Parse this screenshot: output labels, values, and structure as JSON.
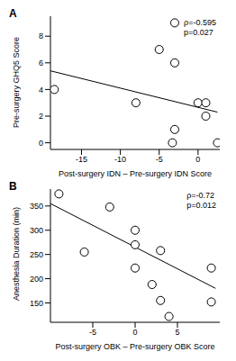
{
  "chart_data": [
    {
      "type": "scatter",
      "title": "A",
      "x_label": "Post-surgery IDN – Pre-surgery IDN Score",
      "y_label": "Pre-surgery GHQ5 Score",
      "x": [
        -18.5,
        -8,
        -5,
        -3,
        -3,
        -3,
        -3.3,
        0,
        1,
        1,
        2.5
      ],
      "values": [
        4,
        3,
        7,
        9,
        6,
        1,
        0,
        3,
        3,
        2,
        0
      ],
      "fit": {
        "x": [
          -19,
          2.5
        ],
        "y": [
          5.4,
          2.3
        ]
      },
      "annotations": [
        "ρ=-0.595",
        "p=0.027"
      ],
      "xlim": [
        -19,
        2.8
      ],
      "xticks": [
        -15,
        -10,
        -5,
        0
      ],
      "ylim": [
        -0.5,
        9.5
      ],
      "yticks": [
        0,
        2,
        4,
        6,
        8
      ],
      "color": "#000000",
      "marker": "open"
    },
    {
      "type": "scatter",
      "title": "B",
      "x_label": "Post-surgery OBK – Pre-surgery OBK Score",
      "y_label": "Anesthesia Duration (min)",
      "x": [
        -9,
        -6,
        -3,
        0,
        0,
        0,
        2,
        3,
        3,
        4,
        9,
        9
      ],
      "values": [
        375,
        255,
        348,
        300,
        270,
        222,
        188,
        258,
        155,
        122,
        222,
        152
      ],
      "fit": {
        "x": [
          -10,
          9.5
        ],
        "y": [
          355,
          180
        ]
      },
      "annotations": [
        "ρ=-0.72",
        "p=0.012"
      ],
      "xlim": [
        -10,
        10
      ],
      "xticks": [
        -5,
        0,
        5
      ],
      "ylim": [
        110,
        385
      ],
      "yticks": [
        150,
        200,
        250,
        300,
        350
      ],
      "color": "#000000",
      "marker": "open"
    }
  ]
}
